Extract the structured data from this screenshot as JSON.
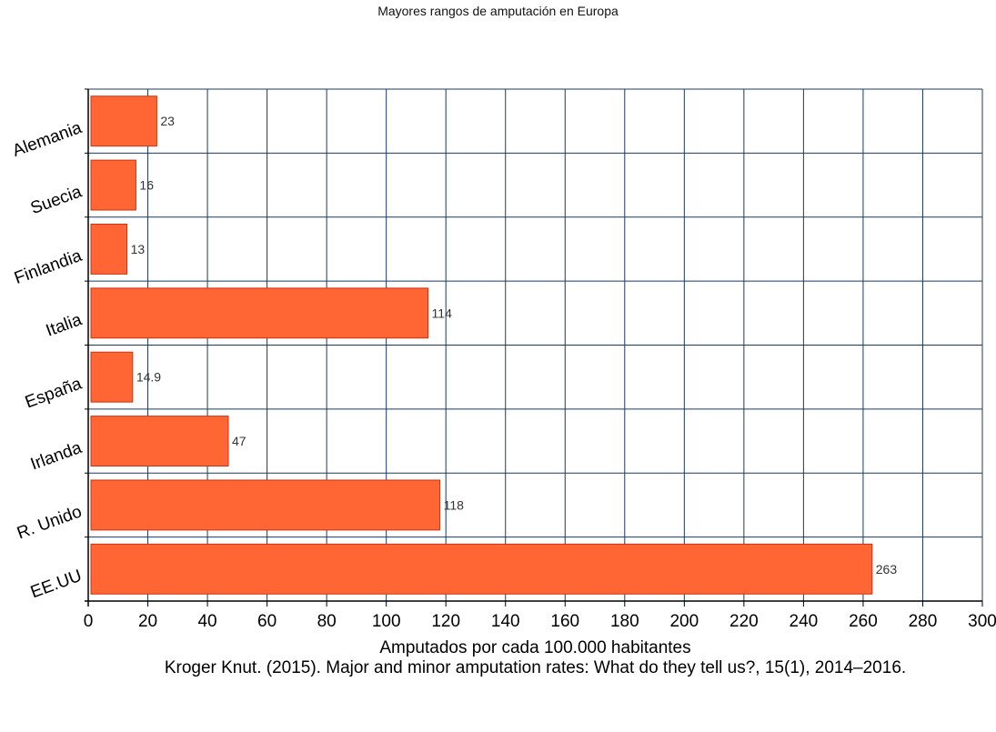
{
  "chart_data": {
    "type": "bar",
    "orientation": "horizontal",
    "title": "Mayores rangos de amputación en Europa",
    "xlabel": "Amputados por cada 100.000 habitantes",
    "source": "Kroger Knut. (2015). Major and minor amputation rates: What do they tell us?, 15(1), 2014–2016.",
    "categories": [
      "Alemania",
      "Suecia",
      "Finlandia",
      "Italia",
      "España",
      "Irlanda",
      "R. Unido",
      "EE.UU"
    ],
    "values": [
      23,
      16,
      13,
      114,
      14.9,
      47,
      118,
      263
    ],
    "data_labels": [
      "23",
      "16",
      "13",
      "114",
      "14.9",
      "47",
      "118",
      "263"
    ],
    "xlim": [
      0,
      300
    ],
    "x_ticks": [
      0,
      20,
      40,
      60,
      80,
      100,
      120,
      140,
      160,
      180,
      200,
      220,
      240,
      260,
      280,
      300
    ],
    "grid": true,
    "bar_color": "#ff6633",
    "bar_edge_color": "#cc3311",
    "grid_color": "#1c3a5e"
  }
}
